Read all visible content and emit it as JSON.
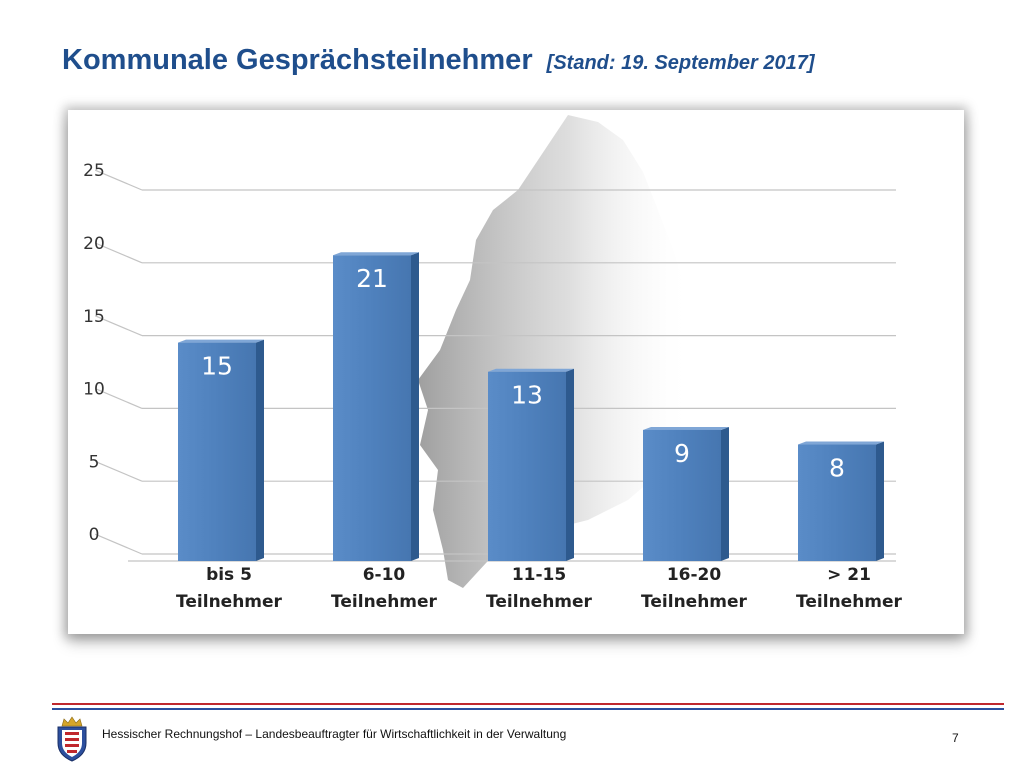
{
  "slide": {
    "title": "Kommunale Gesprächsteilnehmer",
    "subtitle": "[Stand: 19. September 2017]",
    "footer_text": "Hessischer Rechnungshof – Landesbeauftragter für Wirtschaftlichkeit in der Verwaltung",
    "page_number": "7"
  },
  "chart_data": {
    "type": "bar",
    "categories": [
      [
        "bis 5",
        "Teilnehmer"
      ],
      [
        "6-10",
        "Teilnehmer"
      ],
      [
        "11-15",
        "Teilnehmer"
      ],
      [
        "16-20",
        "Teilnehmer"
      ],
      [
        "> 21",
        "Teilnehmer"
      ]
    ],
    "values": [
      15,
      21,
      13,
      9,
      8
    ],
    "data_labels": [
      "15",
      "21",
      "13",
      "9",
      "8"
    ],
    "ylim": [
      0,
      25
    ],
    "yticks": [
      0,
      5,
      10,
      15,
      20,
      25
    ],
    "grid": true,
    "bar_color": "#4f81bd",
    "legend": "none"
  },
  "colors": {
    "title": "#1f4e8c",
    "footer_red": "#c0282d",
    "footer_blue": "#2c4f9e"
  }
}
